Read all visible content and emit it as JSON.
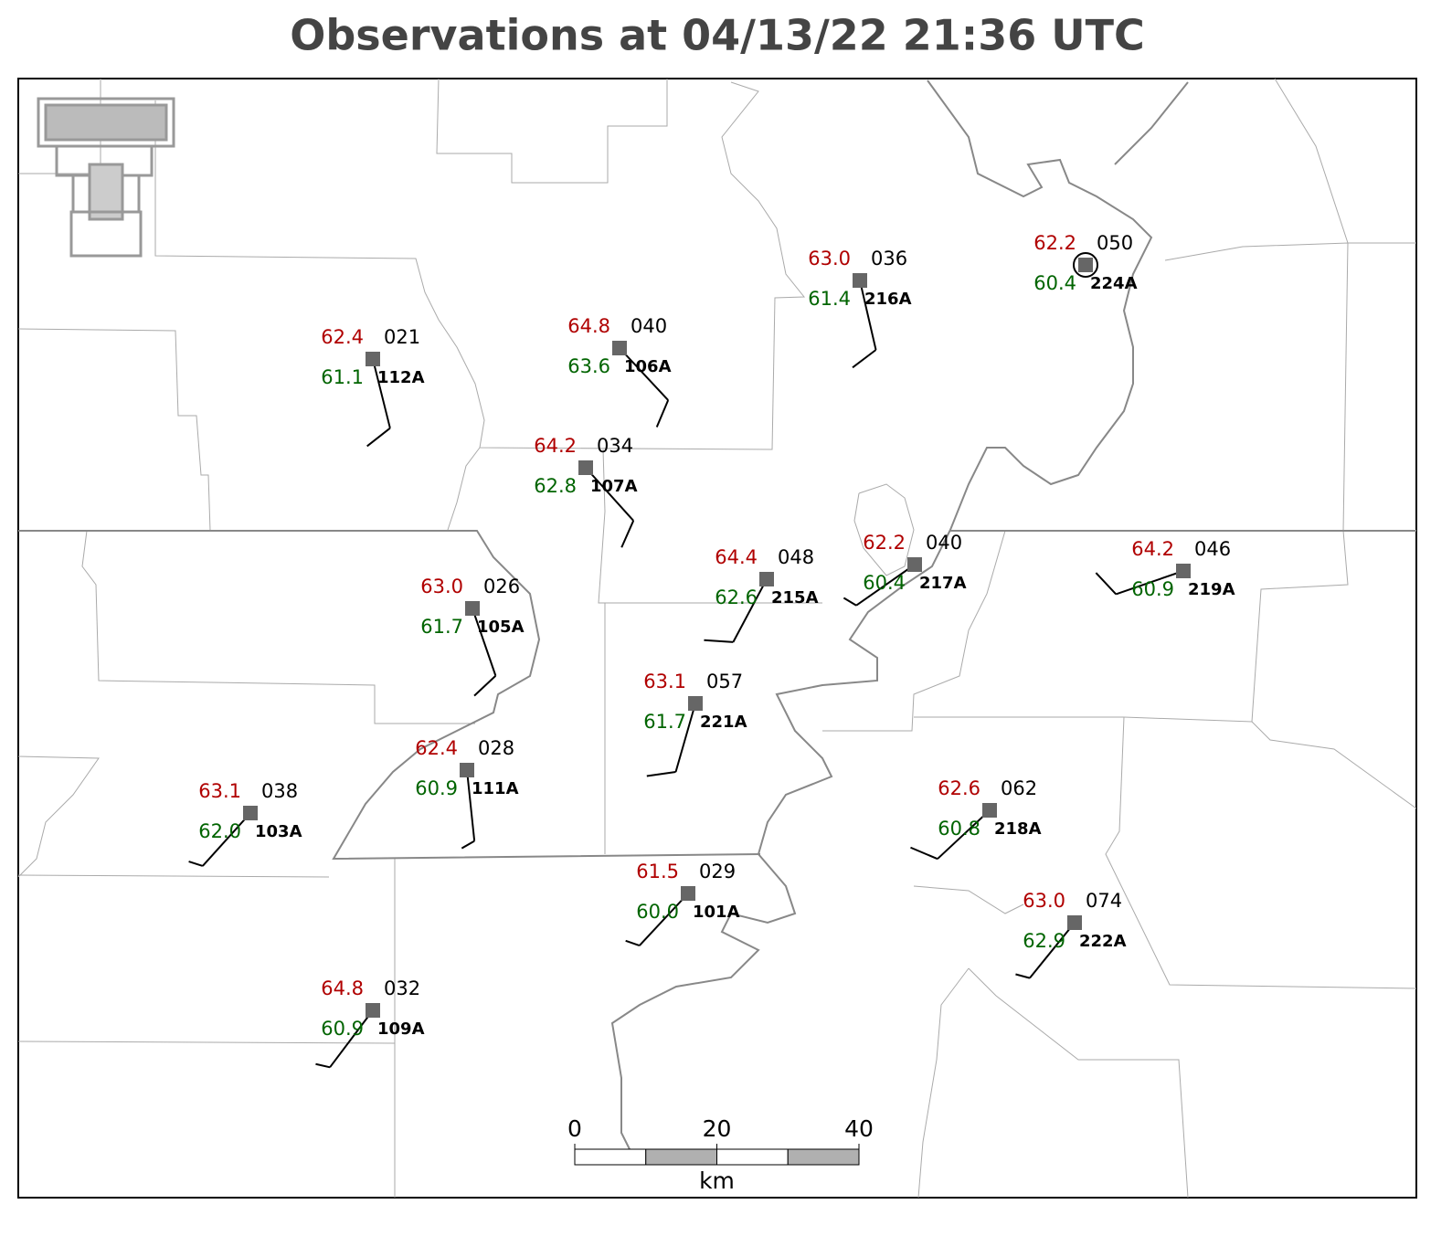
{
  "title": "Observations at 04/13/22 21:36 UTC",
  "stations": [
    {
      "id": "112A",
      "temperature": "62.4",
      "dewpoint": "61.1",
      "pressure": "021",
      "wind_dir": 166,
      "wind_speed": 10
    },
    {
      "id": "106A",
      "temperature": "64.8",
      "dewpoint": "63.6",
      "pressure": "040",
      "wind_dir": 137,
      "wind_speed": 10
    },
    {
      "id": "107A",
      "temperature": "64.2",
      "dewpoint": "62.8",
      "pressure": "034",
      "wind_dir": 138,
      "wind_speed": 10
    },
    {
      "id": "216A",
      "temperature": "63.0",
      "dewpoint": "61.4",
      "pressure": "036",
      "wind_dir": 167,
      "wind_speed": 10
    },
    {
      "id": "224A",
      "temperature": "62.2",
      "dewpoint": "60.4",
      "pressure": "050",
      "wind_dir": 0,
      "wind_speed": 0
    },
    {
      "id": "215A",
      "temperature": "64.4",
      "dewpoint": "62.6",
      "pressure": "048",
      "wind_dir": 208,
      "wind_speed": 10
    },
    {
      "id": "217A",
      "temperature": "62.2",
      "dewpoint": "60.4",
      "pressure": "040",
      "wind_dir": 235,
      "wind_speed": 5
    },
    {
      "id": "219A",
      "temperature": "64.2",
      "dewpoint": "60.9",
      "pressure": "046",
      "wind_dir": 251,
      "wind_speed": 10
    },
    {
      "id": "105A",
      "temperature": "63.0",
      "dewpoint": "61.7",
      "pressure": "026",
      "wind_dir": 161,
      "wind_speed": 10
    },
    {
      "id": "221A",
      "temperature": "63.1",
      "dewpoint": "61.7",
      "pressure": "057",
      "wind_dir": 196,
      "wind_speed": 10
    },
    {
      "id": "111A",
      "temperature": "62.4",
      "dewpoint": "60.9",
      "pressure": "028",
      "wind_dir": 174,
      "wind_speed": 5
    },
    {
      "id": "103A",
      "temperature": "63.1",
      "dewpoint": "62.0",
      "pressure": "038",
      "wind_dir": 222,
      "wind_speed": 5
    },
    {
      "id": "218A",
      "temperature": "62.6",
      "dewpoint": "60.8",
      "pressure": "062",
      "wind_dir": 227,
      "wind_speed": 10
    },
    {
      "id": "101A",
      "temperature": "61.5",
      "dewpoint": "60.0",
      "pressure": "029",
      "wind_dir": 223,
      "wind_speed": 5
    },
    {
      "id": "222A",
      "temperature": "63.0",
      "dewpoint": "62.9",
      "pressure": "074",
      "wind_dir": 219,
      "wind_speed": 5
    },
    {
      "id": "109A",
      "temperature": "64.8",
      "dewpoint": "60.9",
      "pressure": "032",
      "wind_dir": 217,
      "wind_speed": 5
    }
  ],
  "scale_bar": {
    "ticks": [
      0,
      20,
      40
    ],
    "unit": "km"
  }
}
